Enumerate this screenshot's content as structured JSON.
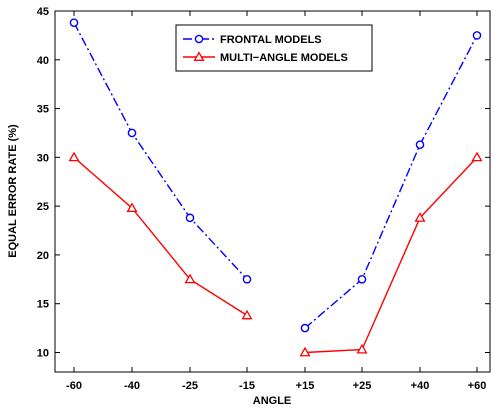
{
  "chart_data": {
    "type": "line",
    "title": "",
    "xlabel": "ANGLE",
    "ylabel": "EQUAL ERROR RATE (%)",
    "categories": [
      "-60",
      "-40",
      "-25",
      "-15",
      "+15",
      "+25",
      "+40",
      "+60"
    ],
    "ylim": [
      8,
      45
    ],
    "yticks": [
      10,
      15,
      20,
      25,
      30,
      35,
      40,
      45
    ],
    "grid": false,
    "legend_position": "top-center",
    "series": [
      {
        "name": "FRONTAL MODELS",
        "color": "#0000ff",
        "line_style": "dash-dot",
        "marker": "circle",
        "values": [
          43.8,
          32.5,
          23.8,
          17.5,
          12.5,
          17.5,
          31.3,
          42.5
        ]
      },
      {
        "name": "MULTI−ANGLE MODELS",
        "color": "#ff0000",
        "line_style": "solid",
        "marker": "triangle",
        "values": [
          30.0,
          24.8,
          17.5,
          13.8,
          10.0,
          10.3,
          23.8,
          30.0
        ]
      }
    ],
    "gap_between": [
      "-15",
      "+15"
    ]
  }
}
